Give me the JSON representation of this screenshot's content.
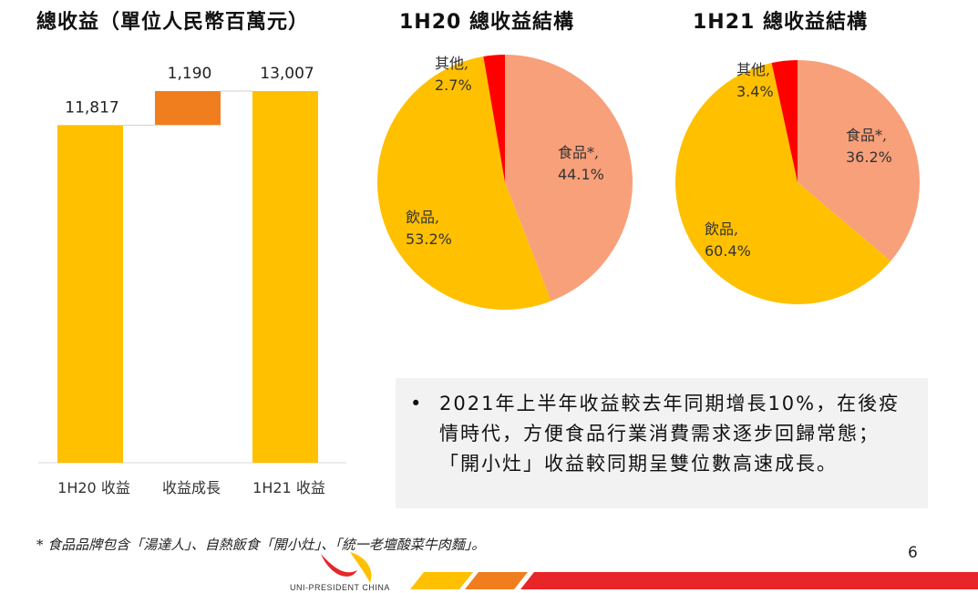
{
  "titles": {
    "revenue": "總收益（單位人民幣百萬元）",
    "h20": "1H20 總收益結構",
    "h21": "1H21 總收益結構"
  },
  "chart_data": [
    {
      "type": "bar",
      "chart_kind": "waterfall",
      "title": "總收益（單位人民幣百萬元）",
      "categories": [
        "1H20 收益",
        "收益成長",
        "1H21 收益"
      ],
      "values": [
        11817,
        1190,
        13007
      ],
      "value_labels": [
        "11,817",
        "1,190",
        "13,007"
      ],
      "colors": [
        "#FFC000",
        "#F07E1E",
        "#FFC000"
      ],
      "ylim": [
        0,
        13007
      ]
    },
    {
      "type": "pie",
      "title": "1H20 總收益結構",
      "labels": [
        "食品*",
        "飲品",
        "其他"
      ],
      "values": [
        44.1,
        53.2,
        2.7
      ],
      "value_labels": [
        "44.1%",
        "53.2%",
        "2.7%"
      ],
      "colors": [
        "#F8A07A",
        "#FFC000",
        "#FF0000"
      ]
    },
    {
      "type": "pie",
      "title": "1H21 總收益結構",
      "labels": [
        "食品*",
        "飲品",
        "其他"
      ],
      "values": [
        36.2,
        60.4,
        3.4
      ],
      "value_labels": [
        "36.2%",
        "60.4%",
        "3.4%"
      ],
      "colors": [
        "#F8A07A",
        "#FFC000",
        "#FF0000"
      ]
    }
  ],
  "bullet": {
    "marker": "•",
    "text": "2021年上半年收益較去年同期增長10%，在後疫情時代，方便食品行業消費需求逐步回歸常態；「開小灶」收益較同期呈雙位數高速成長。"
  },
  "footnote": "* 食品品牌包含「湯達人」、自熱飯食「開小灶」、「統一老壇酸菜牛肉麵」。",
  "page_number": "6",
  "logo": {
    "text": "UNI-PRESIDENT CHINA"
  },
  "colors": {
    "red": "#E8262A",
    "orange": "#F07E1E",
    "yellow": "#FFC000",
    "box_bg": "#F2F2F2"
  }
}
